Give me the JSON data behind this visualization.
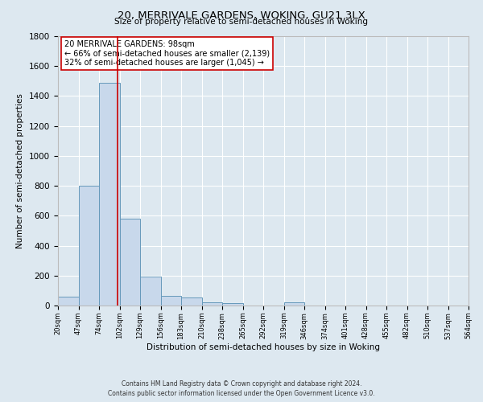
{
  "title": "20, MERRIVALE GARDENS, WOKING, GU21 3LX",
  "subtitle": "Size of property relative to semi-detached houses in Woking",
  "xlabel": "Distribution of semi-detached houses by size in Woking",
  "ylabel": "Number of semi-detached properties",
  "bin_edges": [
    20,
    47,
    74,
    101,
    128,
    155,
    182,
    209,
    236,
    263,
    290,
    317,
    344,
    371,
    398,
    425,
    452,
    479,
    506,
    533,
    560
  ],
  "bin_counts": [
    60,
    800,
    1490,
    580,
    195,
    65,
    55,
    20,
    15,
    0,
    0,
    20,
    0,
    0,
    0,
    0,
    0,
    0,
    0,
    0
  ],
  "vline_x": 98,
  "ylim": [
    0,
    1800
  ],
  "yticks": [
    0,
    200,
    400,
    600,
    800,
    1000,
    1200,
    1400,
    1600,
    1800
  ],
  "xtick_labels": [
    "20sqm",
    "47sqm",
    "74sqm",
    "102sqm",
    "129sqm",
    "156sqm",
    "183sqm",
    "210sqm",
    "238sqm",
    "265sqm",
    "292sqm",
    "319sqm",
    "346sqm",
    "374sqm",
    "401sqm",
    "428sqm",
    "455sqm",
    "482sqm",
    "510sqm",
    "537sqm",
    "564sqm"
  ],
  "annotation_title": "20 MERRIVALE GARDENS: 98sqm",
  "annotation_line1": "← 66% of semi-detached houses are smaller (2,139)",
  "annotation_line2": "32% of semi-detached houses are larger (1,045) →",
  "bar_color": "#c8d8eb",
  "bar_edge_color": "#6699bb",
  "vline_color": "#cc0000",
  "bg_color": "#dde8f0",
  "grid_color": "#ffffff",
  "footer_line1": "Contains HM Land Registry data © Crown copyright and database right 2024.",
  "footer_line2": "Contains public sector information licensed under the Open Government Licence v3.0."
}
